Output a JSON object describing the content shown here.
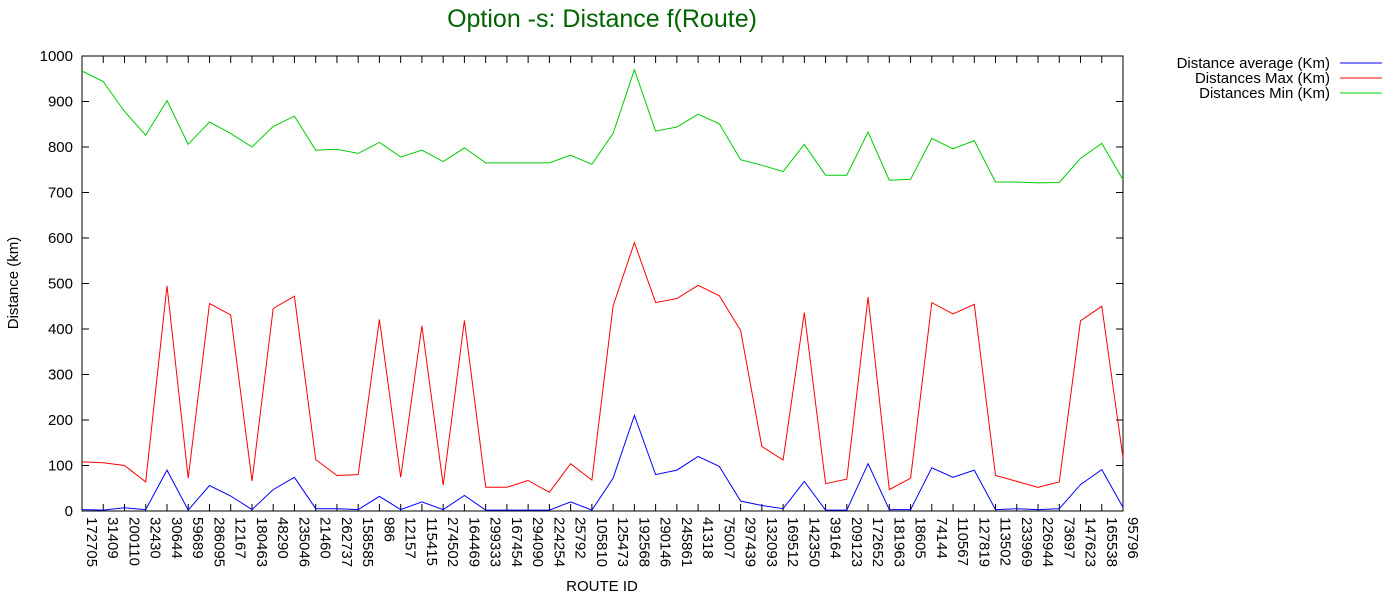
{
  "chart_data": {
    "type": "line",
    "title": "Option -s: Distance f(Route)",
    "title_color": "#006400",
    "xlabel": "ROUTE ID",
    "ylabel": "Distance (km)",
    "ylim": [
      0,
      1000
    ],
    "yticks": [
      0,
      100,
      200,
      300,
      400,
      500,
      600,
      700,
      800,
      900,
      1000
    ],
    "grid": false,
    "legend_position": "outside-top-right",
    "categories": [
      "172705",
      "31409",
      "200110",
      "32430",
      "30644",
      "59689",
      "286095",
      "12167",
      "180463",
      "48290",
      "235046",
      "21460",
      "262737",
      "158585",
      "986",
      "12157",
      "115415",
      "274502",
      "164469",
      "299333",
      "167454",
      "294090",
      "224254",
      "25792",
      "105810",
      "125473",
      "192568",
      "290146",
      "245861",
      "41318",
      "75007",
      "297439",
      "132093",
      "169512",
      "142350",
      "39164",
      "209123",
      "172652",
      "181963",
      "18605",
      "74144",
      "110567",
      "127819",
      "113502",
      "233969",
      "226944",
      "73697",
      "147623",
      "165538",
      "95796"
    ],
    "series": [
      {
        "name": "Distance average (Km)",
        "color": "#0000ff",
        "values": [
          3,
          2,
          7,
          3,
          90,
          2,
          56,
          33,
          3,
          47,
          74,
          5,
          5,
          3,
          32,
          3,
          20,
          3,
          34,
          2,
          2,
          2,
          2,
          20,
          2,
          72,
          210,
          80,
          90,
          120,
          98,
          22,
          12,
          5,
          65,
          2,
          2,
          104,
          3,
          3,
          95,
          74,
          90,
          3,
          5,
          3,
          5,
          58,
          91,
          8
        ]
      },
      {
        "name": "Distances Max (Km)",
        "color": "#ff0000",
        "values": [
          108,
          106,
          100,
          64,
          495,
          72,
          456,
          431,
          66,
          445,
          472,
          113,
          78,
          80,
          421,
          74,
          407,
          57,
          419,
          52,
          52,
          67,
          41,
          104,
          68,
          451,
          590,
          458,
          467,
          496,
          473,
          397,
          142,
          112,
          436,
          60,
          70,
          470,
          47,
          72,
          458,
          433,
          454,
          78,
          65,
          52,
          64,
          418,
          450,
          117
        ]
      },
      {
        "name": "Distances Min (Km)",
        "color": "#00cc00",
        "values": [
          967,
          944,
          878,
          826,
          902,
          806,
          855,
          830,
          800,
          845,
          868,
          793,
          795,
          786,
          810,
          778,
          793,
          768,
          798,
          765,
          765,
          765,
          765,
          782,
          762,
          830,
          970,
          835,
          844,
          872,
          851,
          772,
          760,
          746,
          806,
          738,
          738,
          833,
          727,
          729,
          819,
          796,
          814,
          723,
          723,
          721,
          722,
          775,
          808,
          728
        ]
      }
    ]
  }
}
